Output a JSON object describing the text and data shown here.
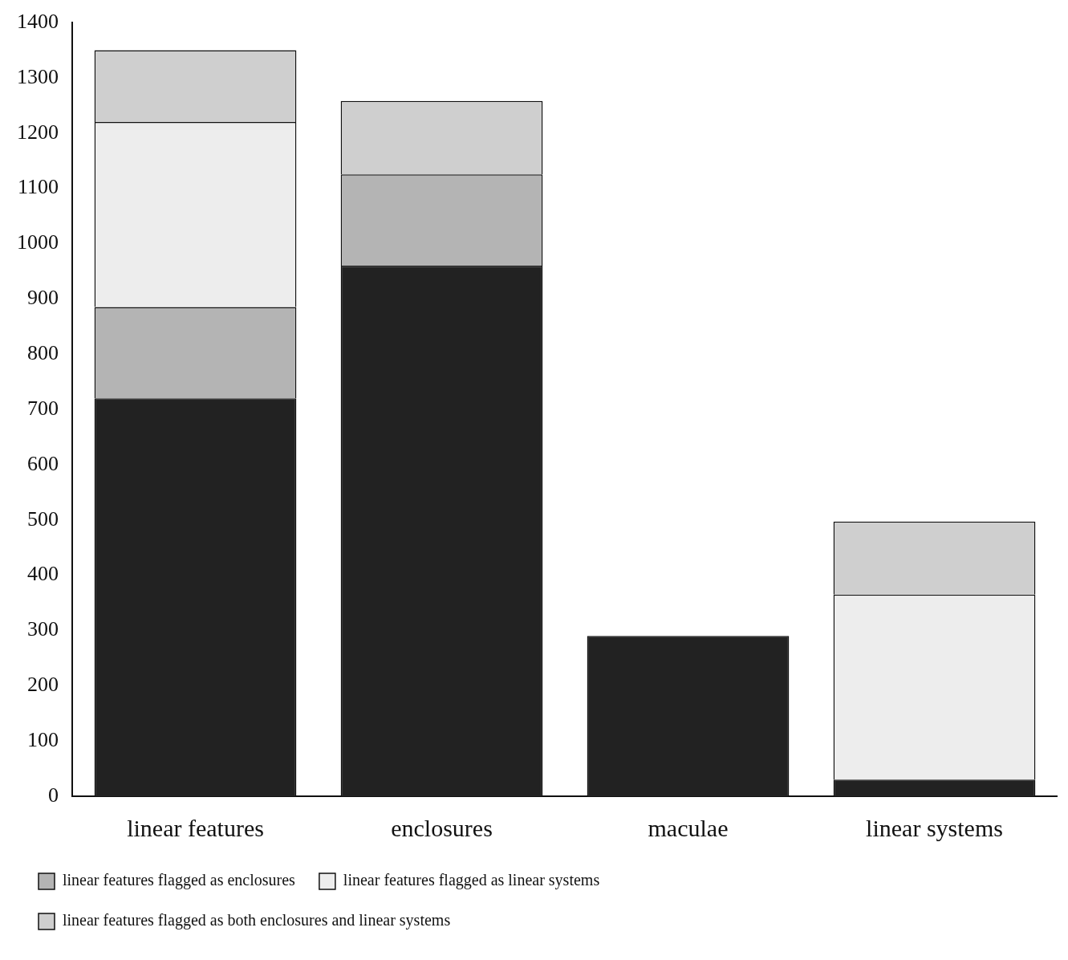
{
  "chart_data": {
    "type": "bar",
    "stacked": true,
    "categories": [
      "linear features",
      "enclosures",
      "maculae",
      "linear systems"
    ],
    "series": [
      {
        "color": "#222222",
        "values": [
          720,
          960,
          290,
          30
        ]
      },
      {
        "name": "linear features flagged as enclosures",
        "color": "#b4b4b4",
        "values": [
          165,
          165,
          0,
          0
        ]
      },
      {
        "name": "linear features flagged as linear systems",
        "color": "#ededed",
        "values": [
          335,
          0,
          0,
          335
        ]
      },
      {
        "name": "linear features flagged as both enclosures and linear systems",
        "color": "#cfcfcf",
        "values": [
          130,
          133,
          0,
          132
        ]
      }
    ],
    "ylim": [
      0,
      1400
    ],
    "yticks": [
      0,
      100,
      200,
      300,
      400,
      500,
      600,
      700,
      800,
      900,
      1000,
      1100,
      1200,
      1300,
      1400
    ],
    "grid": false,
    "legend": "bottom"
  }
}
